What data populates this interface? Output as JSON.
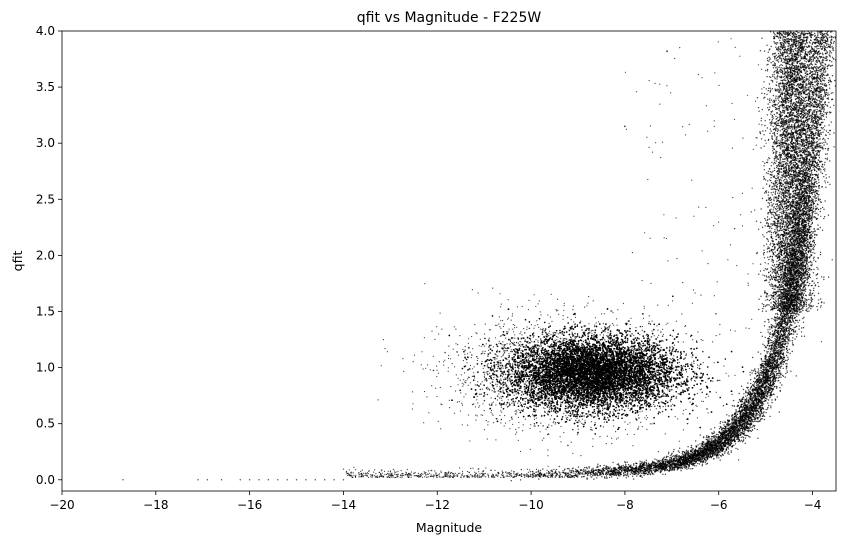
{
  "chart_data": {
    "type": "scatter",
    "title": "qfit vs Magnitude - F225W",
    "xlabel": "Magnitude",
    "ylabel": "qfit",
    "xlim": [
      -20,
      -3.5
    ],
    "ylim": [
      -0.1,
      4.0
    ],
    "xticks": [
      -20,
      -18,
      -16,
      -14,
      -12,
      -10,
      -8,
      -6,
      -4
    ],
    "yticks": [
      0.0,
      0.5,
      1.0,
      1.5,
      2.0,
      2.5,
      3.0,
      3.5,
      4.0
    ],
    "xtick_labels": [
      "−20",
      "−18",
      "−16",
      "−14",
      "−12",
      "−10",
      "−8",
      "−6",
      "−4"
    ],
    "ytick_labels": [
      "0.0",
      "0.5",
      "1.0",
      "1.5",
      "2.0",
      "2.5",
      "3.0",
      "3.5",
      "4.0"
    ],
    "grid": false,
    "marker_color": "#000000",
    "sample_points": {
      "x": [
        -18.7,
        -17.1,
        -16.9,
        -16.5,
        -16.2,
        -15.9,
        -15.5,
        -15.1,
        -14.8,
        -14.5,
        -14.2,
        -14.0,
        -13.6,
        -13.0,
        -12.0,
        -11.0,
        -10.0,
        -9.0,
        -8.0,
        -7.0,
        -6.0,
        -5.0,
        -4.5,
        -4.3,
        -4.1,
        -3.9,
        -12.9,
        -11.4,
        -11.0,
        -10.0,
        -9.0,
        -8.6,
        -8.0,
        -7.5,
        -7.2,
        -9.5,
        -8.3,
        -10.5,
        -6.9,
        -6.5,
        -6.2,
        -5.8,
        -5.4,
        -5.0,
        -4.8,
        -4.6,
        -4.4,
        -7.1,
        -8.0,
        -4.2,
        -4.0,
        -3.8,
        -6.6,
        -6.3
      ],
      "y": [
        0.0,
        0.0,
        0.0,
        0.0,
        0.0,
        0.0,
        0.0,
        0.0,
        0.0,
        0.0,
        0.0,
        0.0,
        0.02,
        0.03,
        0.04,
        0.05,
        0.07,
        0.1,
        0.15,
        0.22,
        0.38,
        0.6,
        1.0,
        1.6,
        2.4,
        3.2,
        1.1,
        1.55,
        0.9,
        0.95,
        0.85,
        1.0,
        1.1,
        1.3,
        0.7,
        0.6,
        1.4,
        1.2,
        2.0,
        1.8,
        0.8,
        1.6,
        1.9,
        2.3,
        3.0,
        3.5,
        3.9,
        3.82,
        3.15,
        3.7,
        2.9,
        2.5,
        2.6,
        2.1
      ]
    }
  }
}
